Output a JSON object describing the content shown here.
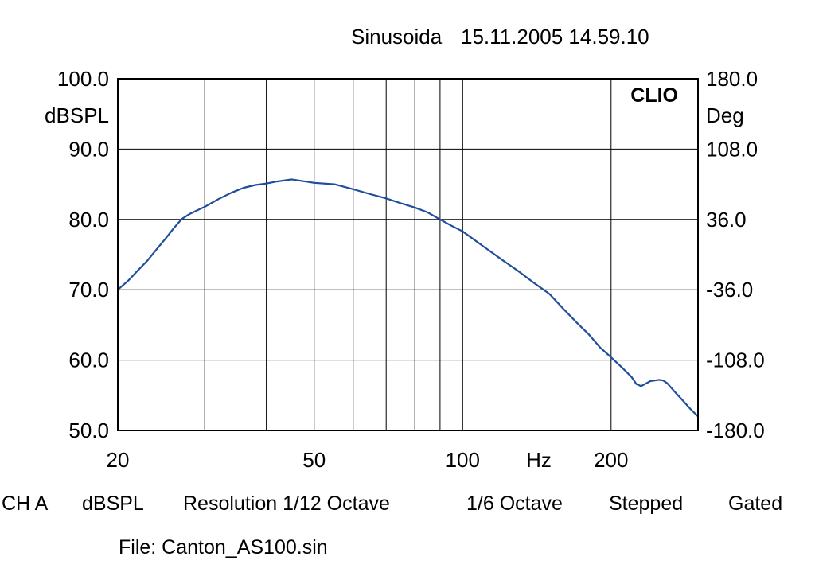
{
  "header": {
    "title_text": "Sinusoida",
    "datetime": "15.11.2005 14.59.10",
    "brand": "CLIO"
  },
  "footer": {
    "channel": "CH A",
    "unit": "dBSPL",
    "resolution": "Resolution 1/12 Octave",
    "smoothing": "1/6 Octave",
    "mode": "Stepped",
    "gating": "Gated",
    "file_line": "File: Canton_AS100.sin"
  },
  "chart_data": {
    "type": "line",
    "x_scale": "log",
    "xlim": [
      20,
      300
    ],
    "ylim": [
      50,
      100
    ],
    "y2lim": [
      -180,
      180
    ],
    "xlabel": "Hz",
    "ylabel": "dBSPL",
    "y2label": "Deg",
    "x_ticks": [
      20,
      50,
      100,
      200
    ],
    "x_tick_labels": [
      "20",
      "50",
      "100",
      "200"
    ],
    "x_gridlines": [
      30,
      40,
      50,
      60,
      70,
      80,
      90,
      100,
      200
    ],
    "y_ticks": [
      100,
      90,
      80,
      70,
      60,
      50
    ],
    "y_tick_labels": [
      "100.0",
      "90.0",
      "80.0",
      "70.0",
      "60.0",
      "50.0"
    ],
    "y2_tick_labels": [
      "180.0",
      "108.0",
      "36.0",
      "-36.0",
      "-108.0",
      "-180.0"
    ],
    "grid": true,
    "line_color": "#1f4e9c",
    "series": [
      {
        "x": [
          20,
          21,
          22,
          23,
          24,
          25,
          26,
          27,
          28,
          30,
          32,
          34,
          36,
          38,
          40,
          42,
          44,
          45,
          46,
          48,
          50,
          55,
          60,
          65,
          70,
          75,
          80,
          85,
          90,
          95,
          100,
          110,
          120,
          130,
          140,
          150,
          160,
          170,
          180,
          190,
          200,
          210,
          220,
          225,
          230,
          240,
          250,
          255,
          260,
          270,
          280,
          290,
          300
        ],
        "y": [
          70.0,
          71.3,
          72.8,
          74.2,
          75.8,
          77.3,
          78.8,
          80.1,
          80.8,
          81.8,
          82.9,
          83.8,
          84.5,
          84.9,
          85.1,
          85.4,
          85.6,
          85.7,
          85.6,
          85.4,
          85.2,
          85.0,
          84.3,
          83.6,
          83.0,
          82.3,
          81.7,
          81.0,
          80.0,
          79.1,
          78.3,
          76.2,
          74.3,
          72.6,
          70.9,
          69.4,
          67.3,
          65.4,
          63.7,
          61.8,
          60.4,
          59.0,
          57.6,
          56.6,
          56.3,
          57.0,
          57.2,
          57.1,
          56.7,
          55.4,
          54.2,
          53.0,
          52.0
        ]
      }
    ]
  }
}
